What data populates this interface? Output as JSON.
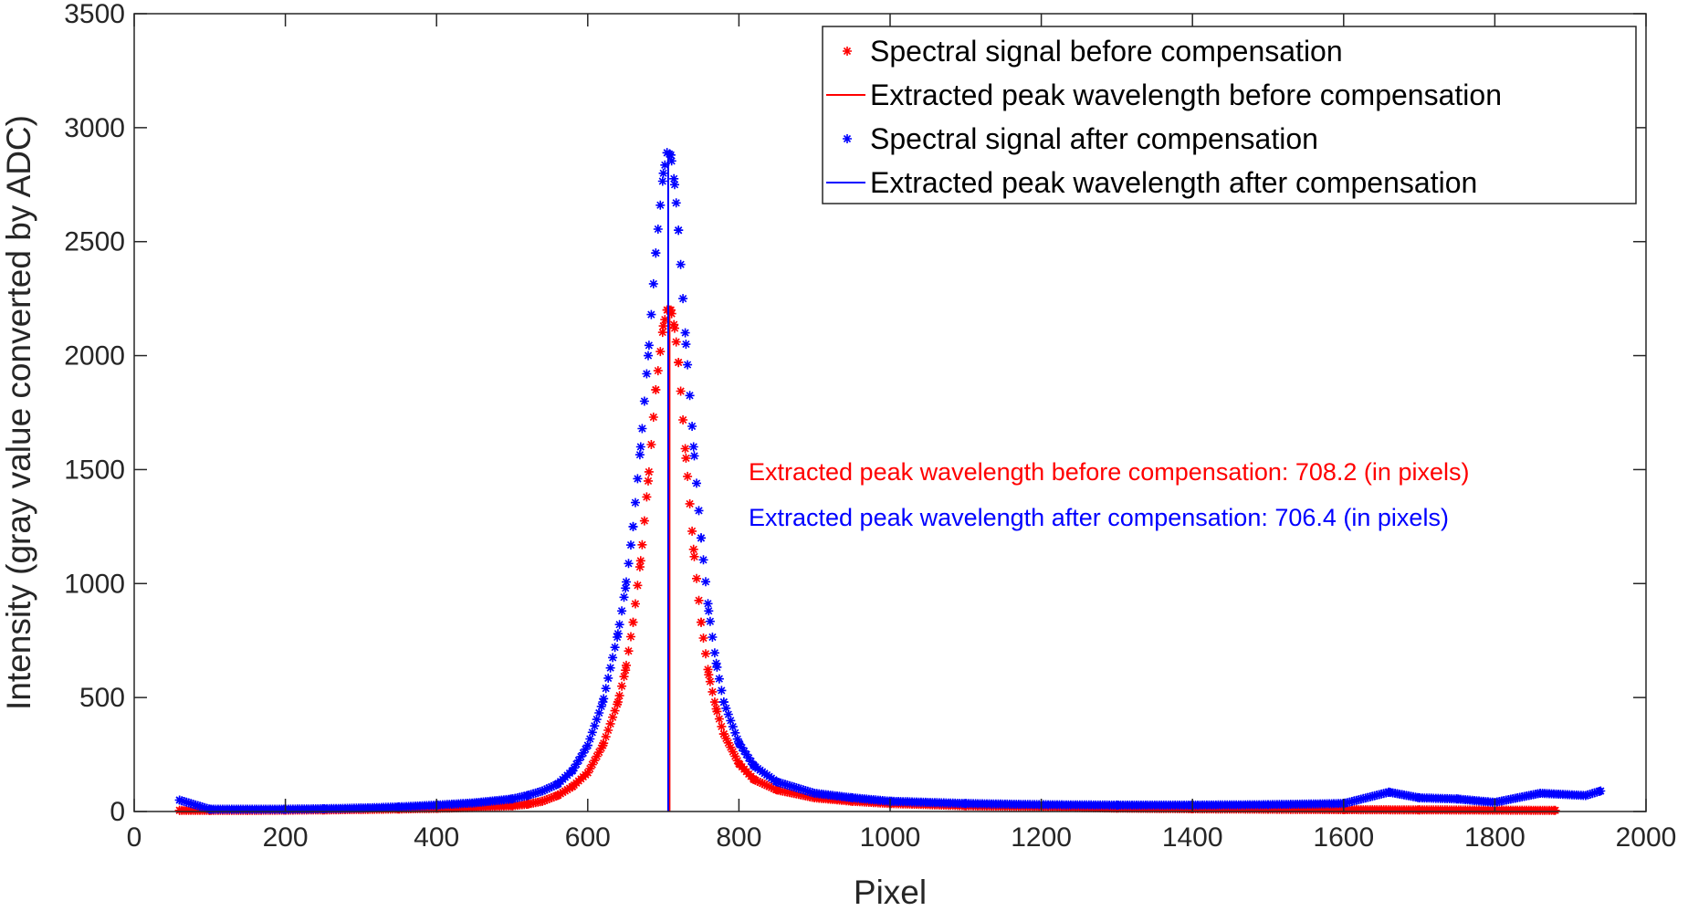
{
  "chart_data": {
    "type": "scatter",
    "xlabel": "Pixel",
    "ylabel": "Intensity (gray value converted by ADC)",
    "xlim": [
      0,
      2000
    ],
    "ylim": [
      0,
      3500
    ],
    "xticks": [
      0,
      200,
      400,
      600,
      800,
      1000,
      1200,
      1400,
      1600,
      1800,
      2000
    ],
    "yticks": [
      0,
      500,
      1000,
      1500,
      2000,
      2500,
      3000,
      3500
    ],
    "grid": false,
    "legend_position": "top-right",
    "colors": {
      "before": "#ff0000",
      "after": "#0000ff"
    },
    "series": [
      {
        "name": "Spectral signal before compensation",
        "marker": "*",
        "color": "#ff0000",
        "x": [
          60,
          100,
          150,
          200,
          250,
          300,
          350,
          400,
          450,
          500,
          520,
          540,
          560,
          580,
          600,
          620,
          640,
          650,
          660,
          670,
          680,
          690,
          700,
          705,
          710,
          715,
          720,
          730,
          740,
          750,
          760,
          770,
          780,
          800,
          820,
          850,
          900,
          950,
          1000,
          1100,
          1200,
          1300,
          1400,
          1500,
          1600,
          1700,
          1800,
          1880
        ],
        "y": [
          5,
          5,
          5,
          6,
          7,
          9,
          11,
          14,
          18,
          25,
          32,
          45,
          70,
          110,
          170,
          290,
          480,
          620,
          830,
          1100,
          1450,
          1850,
          2130,
          2200,
          2200,
          2120,
          1970,
          1550,
          1150,
          830,
          600,
          450,
          340,
          210,
          140,
          95,
          60,
          45,
          35,
          25,
          20,
          15,
          12,
          10,
          8,
          7,
          6,
          5
        ]
      },
      {
        "name": "Extracted peak wavelength before compensation",
        "type": "vline",
        "color": "#ff0000",
        "x": 708.2,
        "y": [
          0,
          2200
        ]
      },
      {
        "name": "Spectral signal after compensation",
        "marker": "*",
        "color": "#0000ff",
        "x": [
          60,
          100,
          150,
          200,
          250,
          300,
          350,
          400,
          450,
          500,
          520,
          540,
          560,
          580,
          600,
          620,
          640,
          650,
          660,
          670,
          680,
          690,
          700,
          705,
          710,
          715,
          720,
          730,
          740,
          750,
          760,
          770,
          780,
          800,
          820,
          850,
          900,
          950,
          1000,
          1100,
          1200,
          1300,
          1400,
          1500,
          1600,
          1660,
          1700,
          1750,
          1800,
          1860,
          1920,
          1940
        ],
        "y": [
          50,
          10,
          10,
          10,
          12,
          15,
          20,
          28,
          38,
          55,
          70,
          90,
          120,
          180,
          290,
          480,
          780,
          980,
          1250,
          1600,
          2000,
          2450,
          2800,
          2890,
          2880,
          2750,
          2550,
          2050,
          1600,
          1200,
          880,
          650,
          480,
          300,
          200,
          130,
          80,
          60,
          45,
          35,
          30,
          28,
          28,
          30,
          35,
          85,
          60,
          55,
          40,
          80,
          70,
          90
        ]
      },
      {
        "name": "Extracted peak wavelength after compensation",
        "type": "vline",
        "color": "#0000ff",
        "x": 706.4,
        "y": [
          0,
          2890
        ]
      }
    ],
    "annotations": [
      {
        "text": "Extracted peak wavelength before compensation: 708.2 (in pixels)",
        "color": "#ff0000"
      },
      {
        "text": "Extracted peak wavelength after compensation: 706.4 (in pixels)",
        "color": "#0000ff"
      }
    ]
  }
}
